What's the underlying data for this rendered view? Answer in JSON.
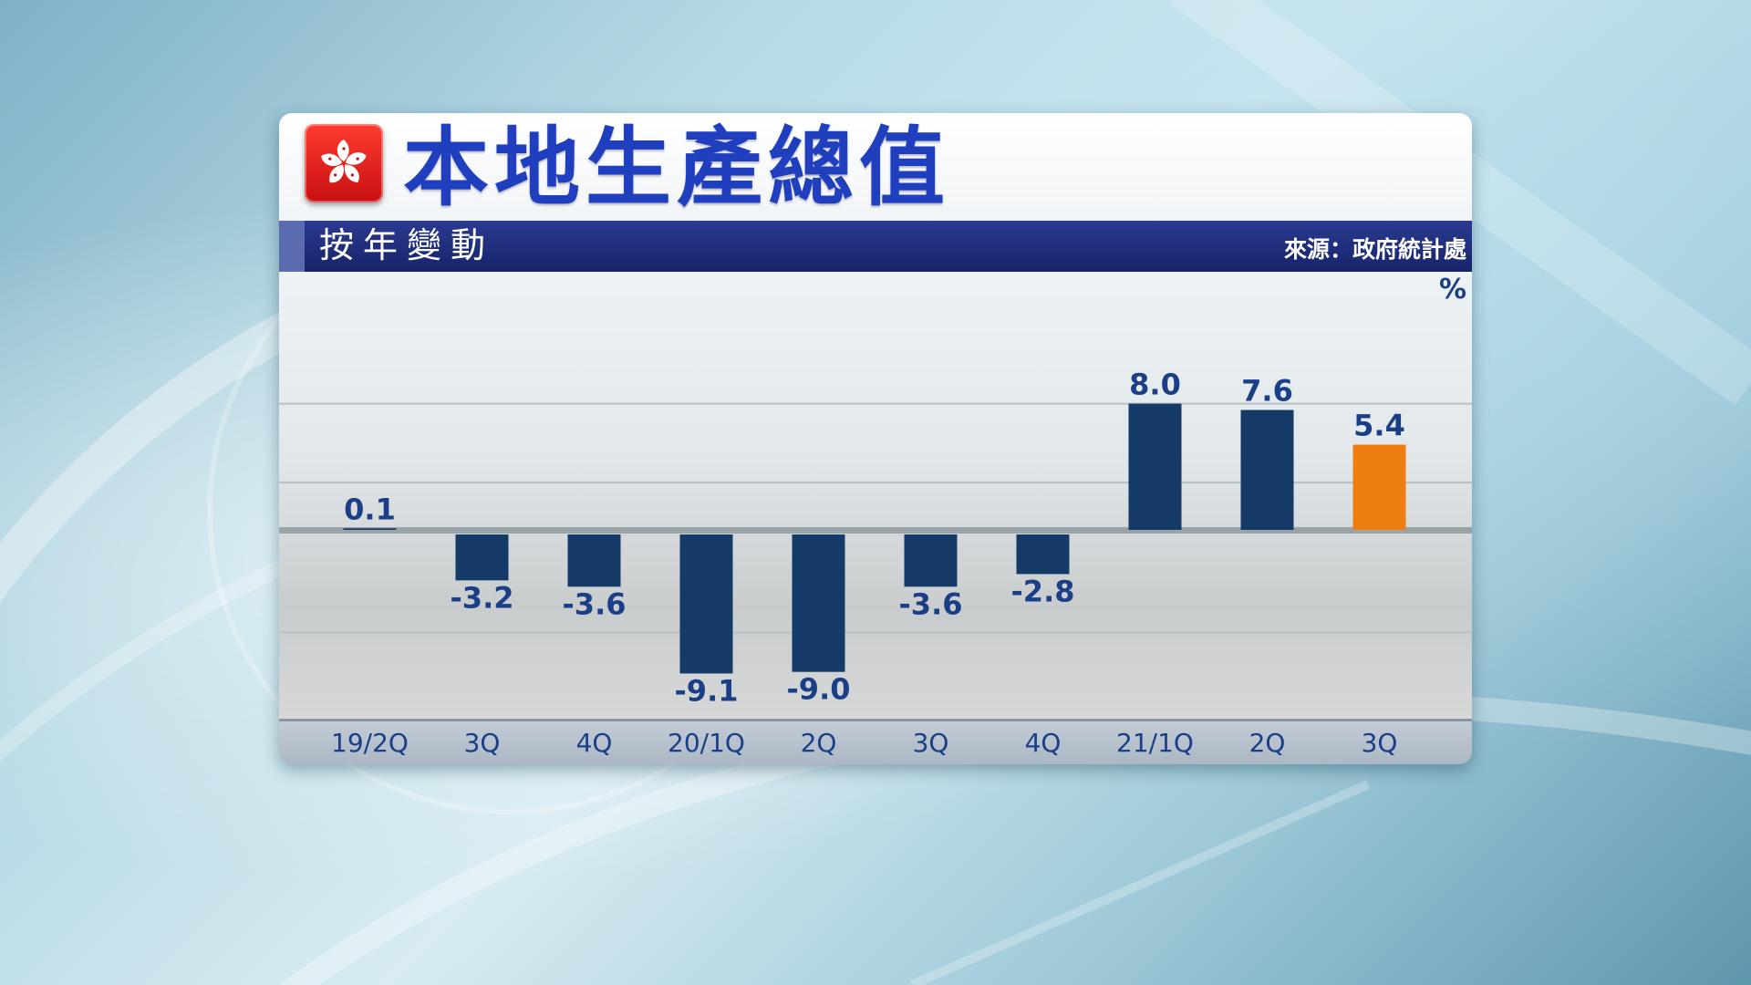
{
  "header": {
    "title": "本地生產總值",
    "subtitle": "按年變動",
    "source": "來源：政府統計處"
  },
  "colors": {
    "title": "#1f3fbf",
    "bar": "#163a68",
    "highlight_bar": "#ee7d12",
    "label": "#1b3f87",
    "banner": "#1c2b7a"
  },
  "icons": {
    "flag": "hong-kong-flag-icon"
  },
  "chart_data": {
    "type": "bar",
    "title": "本地生產總值",
    "subtitle": "按年變動",
    "unit": "%",
    "categories": [
      "19/2Q",
      "3Q",
      "4Q",
      "20/1Q",
      "2Q",
      "3Q",
      "4Q",
      "21/1Q",
      "2Q",
      "3Q"
    ],
    "values": [
      0.1,
      -3.2,
      -3.6,
      -9.1,
      -9.0,
      -3.6,
      -2.8,
      8.0,
      7.6,
      5.4
    ],
    "value_labels": [
      "0.1",
      "-3.2",
      "-3.6",
      "-9.1",
      "-9.0",
      "-3.6",
      "-2.8",
      "8.0",
      "7.6",
      "5.4"
    ],
    "highlight_index": 9,
    "ylim": [
      -11,
      10
    ],
    "grid": true,
    "legend": "none"
  }
}
